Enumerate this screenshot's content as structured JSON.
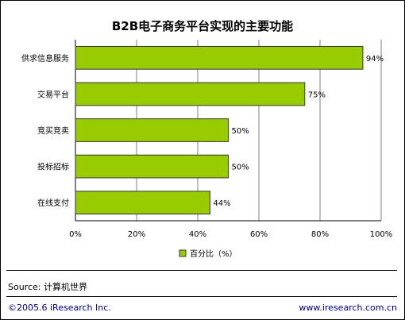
{
  "chart_data": {
    "type": "bar",
    "orientation": "horizontal",
    "title": "B2B电子商务平台实现的主要功能",
    "categories": [
      "供求信息服务",
      "交易平台",
      "竞买竞卖",
      "投标招标",
      "在线支付"
    ],
    "series": [
      {
        "name": "百分比（%）",
        "values": [
          94,
          75,
          50,
          50,
          44
        ],
        "labels": [
          "94%",
          "75%",
          "50%",
          "50%",
          "44%"
        ]
      }
    ],
    "x_ticks": [
      "0%",
      "20%",
      "40%",
      "60%",
      "80%",
      "100%"
    ],
    "xlim": [
      0,
      100
    ],
    "grid": true,
    "legend": "bottom-center"
  },
  "colors": {
    "bar": "#99cc00",
    "bar_stroke": "#333333",
    "grid": "#808080"
  },
  "footer": {
    "source": "Source: 计算机世界",
    "copyright": "©2005.6 iResearch Inc.",
    "url": "www.iresearch.com.cn"
  }
}
